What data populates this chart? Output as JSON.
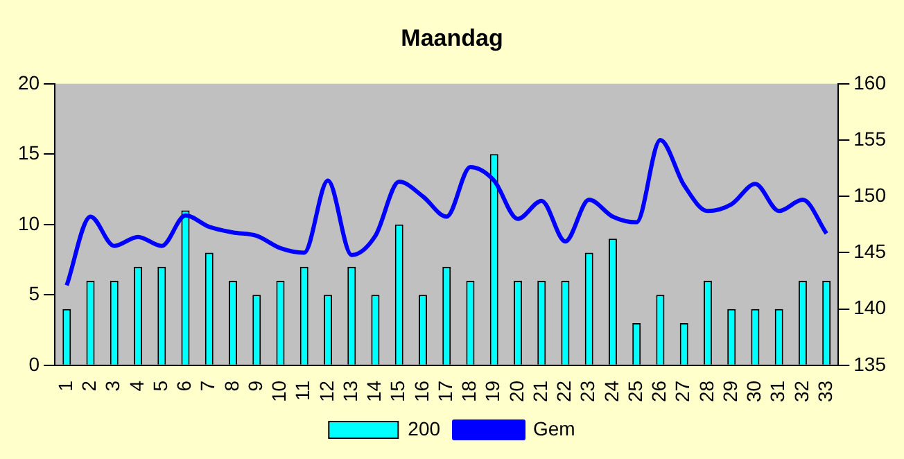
{
  "chart_data": {
    "type": "bar",
    "title": "Maandag",
    "categories": [
      "1",
      "2",
      "3",
      "4",
      "5",
      "6",
      "7",
      "8",
      "9",
      "10",
      "11",
      "12",
      "13",
      "14",
      "15",
      "16",
      "17",
      "18",
      "19",
      "20",
      "21",
      "22",
      "23",
      "24",
      "25",
      "26",
      "27",
      "28",
      "29",
      "30",
      "31",
      "32",
      "33"
    ],
    "series": [
      {
        "name": "200",
        "color": "#00ffff",
        "values": [
          4,
          6,
          6,
          7,
          7,
          11,
          8,
          6,
          5,
          6,
          7,
          5,
          7,
          5,
          10,
          5,
          7,
          6,
          15,
          6,
          6,
          6,
          8,
          9,
          3,
          5,
          3,
          6,
          4,
          4,
          4,
          6,
          6
        ]
      },
      {
        "name": "Gem",
        "type": "line",
        "axis": "y2",
        "color": "#0000ff",
        "values": [
          142.1,
          148.2,
          145.6,
          146.4,
          145.6,
          148.3,
          147.3,
          146.8,
          146.5,
          145.4,
          145,
          151.4,
          144.8,
          146.5,
          151.3,
          150,
          148.2,
          152.6,
          151.4,
          148,
          149.6,
          146,
          149.7,
          148.2,
          147.7,
          155,
          151,
          148.7,
          149.3,
          151.1,
          148.7,
          149.7,
          146.7
        ]
      }
    ],
    "ylim": [
      0,
      20
    ],
    "yticks": [
      0,
      5,
      10,
      15,
      20
    ],
    "y2lim": [
      135,
      160
    ],
    "y2ticks": [
      135,
      140,
      145,
      150,
      155,
      160
    ],
    "grid": false,
    "legend": "bottom",
    "marker": "none",
    "line_style": "solid"
  }
}
